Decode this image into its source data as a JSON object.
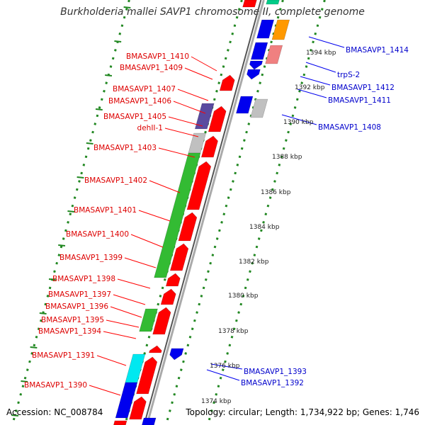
{
  "title": "Burkholderia mallei SAVP1 chromosome II, complete genome",
  "footer": {
    "accession": "Accession: NC_008784",
    "summary": "Topology: circular; Length: 1,734,922 bp; Genes: 1,746"
  },
  "colors": {
    "red": "#ff0000",
    "blue": "#0000ee",
    "green": "#33bb33",
    "gray": "#c0c0c0",
    "purple": "#5a4aa0",
    "cyan": "#00e8f0",
    "orange": "#ff9900",
    "pink": "#f08080",
    "ruler_green": "#228822",
    "backbone": "#888888"
  },
  "left_labels": [
    {
      "name": "BMASAVP1_1410"
    },
    {
      "name": "BMASAVP1_1409"
    },
    {
      "name": "BMASAVP1_1407"
    },
    {
      "name": "BMASAVP1_1406"
    },
    {
      "name": "BMASAVP1_1405"
    },
    {
      "name": "dehII-1"
    },
    {
      "name": "BMASAVP1_1403"
    },
    {
      "name": "BMASAVP1_1402"
    },
    {
      "name": "BMASAVP1_1401"
    },
    {
      "name": "BMASAVP1_1400"
    },
    {
      "name": "BMASAVP1_1399"
    },
    {
      "name": "BMASAVP1_1398"
    },
    {
      "name": "BMASAVP1_1397"
    },
    {
      "name": "BMASAVP1_1396"
    },
    {
      "name": "BMASAVP1_1395"
    },
    {
      "name": "BMASAVP1_1394"
    },
    {
      "name": "BMASAVP1_1391"
    },
    {
      "name": "BMASAVP1_1390"
    }
  ],
  "right_labels": [
    {
      "name": "BMASAVP1_1414"
    },
    {
      "name": "trpS-2"
    },
    {
      "name": "BMASAVP1_1412"
    },
    {
      "name": "BMASAVP1_1411"
    },
    {
      "name": "BMASAVP1_1408"
    },
    {
      "name": "BMASAVP1_1393"
    },
    {
      "name": "BMASAVP1_1392"
    }
  ],
  "scale_ticks": [
    {
      "label": "1394 kbp"
    },
    {
      "label": "1392 kbp"
    },
    {
      "label": "1390 kbp"
    },
    {
      "label": "1388 kbp"
    },
    {
      "label": "1386 kbp"
    },
    {
      "label": "1384 kbp"
    },
    {
      "label": "1382 kbp"
    },
    {
      "label": "1380 kbp"
    },
    {
      "label": "1378 kbp"
    },
    {
      "label": "1376 kbp"
    },
    {
      "label": "1374 kbp"
    }
  ]
}
